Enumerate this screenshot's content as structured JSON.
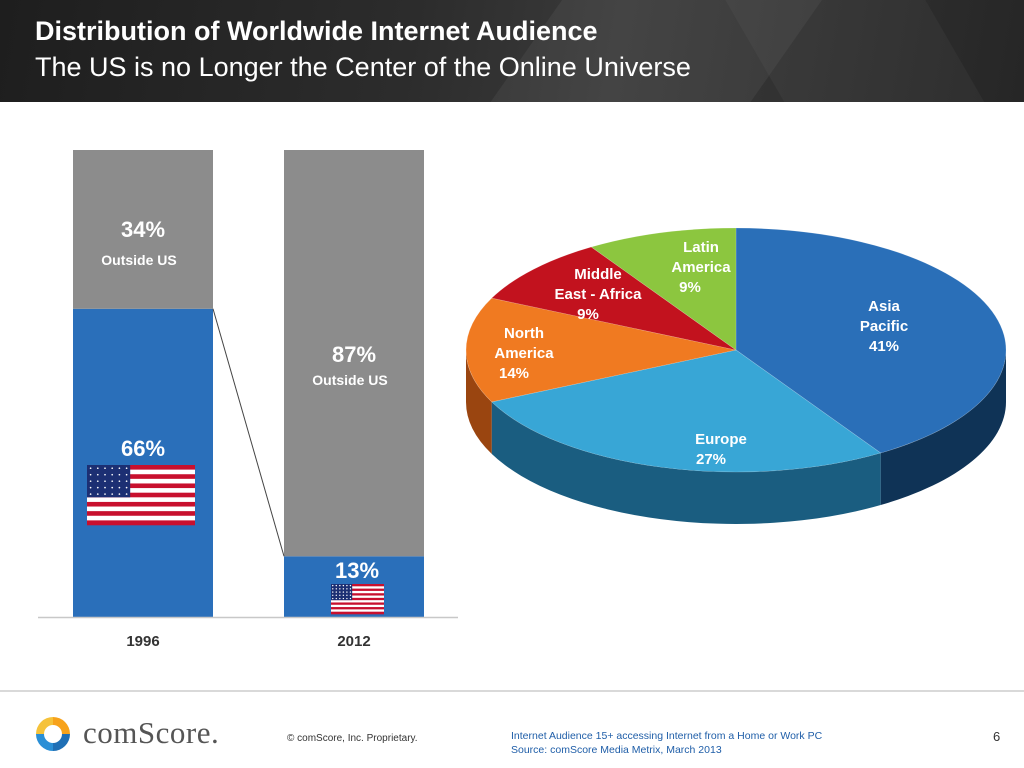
{
  "header": {
    "title": "Distribution of Worldwide Internet Audience",
    "subtitle": "The US is no Longer the Center of the Online Universe"
  },
  "chart_data": [
    {
      "type": "bar",
      "stacked": true,
      "categories": [
        "1996",
        "2012"
      ],
      "series": [
        {
          "name": "US",
          "values": [
            66,
            13
          ],
          "labels": [
            "66%",
            "13%"
          ],
          "color": "#2a6fba"
        },
        {
          "name": "Outside US",
          "values": [
            34,
            87
          ],
          "labels": [
            "34%",
            "87%"
          ],
          "sublabel": "Outside US",
          "color": "#8c8c8c"
        }
      ],
      "ylim": [
        0,
        100
      ]
    },
    {
      "type": "pie",
      "title": "",
      "slices": [
        {
          "name": "Asia Pacific",
          "label_lines": [
            "Asia",
            "Pacific"
          ],
          "value": 41,
          "value_label": "41%",
          "color": "#2a6fb8",
          "side": "#0f3356"
        },
        {
          "name": "Europe",
          "label_lines": [
            "Europe"
          ],
          "value": 27,
          "value_label": "27%",
          "color": "#38a6d6",
          "side": "#1a5d80"
        },
        {
          "name": "North America",
          "label_lines": [
            "North",
            "America"
          ],
          "value": 14,
          "value_label": "14%",
          "color": "#f07a21",
          "side": "#9a4510"
        },
        {
          "name": "Middle East - Africa",
          "label_lines": [
            "Middle",
            "East - Africa"
          ],
          "value": 9,
          "value_label": "9%",
          "color": "#c2121e",
          "side": "#6e0a10"
        },
        {
          "name": "Latin America",
          "label_lines": [
            "Latin",
            "America"
          ],
          "value": 9,
          "value_label": "9%",
          "color": "#8cc63f",
          "side": "#4d7420"
        }
      ]
    }
  ],
  "colors": {
    "us_blue": "#2a6fba",
    "outside_gray": "#8c8c8c",
    "label_white": "#ffffff"
  },
  "footer": {
    "logo_text": "comScore.",
    "copyright": "© comScore, Inc.   Proprietary.",
    "note_line1": "Internet Audience 15+ accessing Internet from a Home or Work PC",
    "note_line2": "Source:  comScore Media Metrix, March 2013",
    "page_number": "6"
  }
}
